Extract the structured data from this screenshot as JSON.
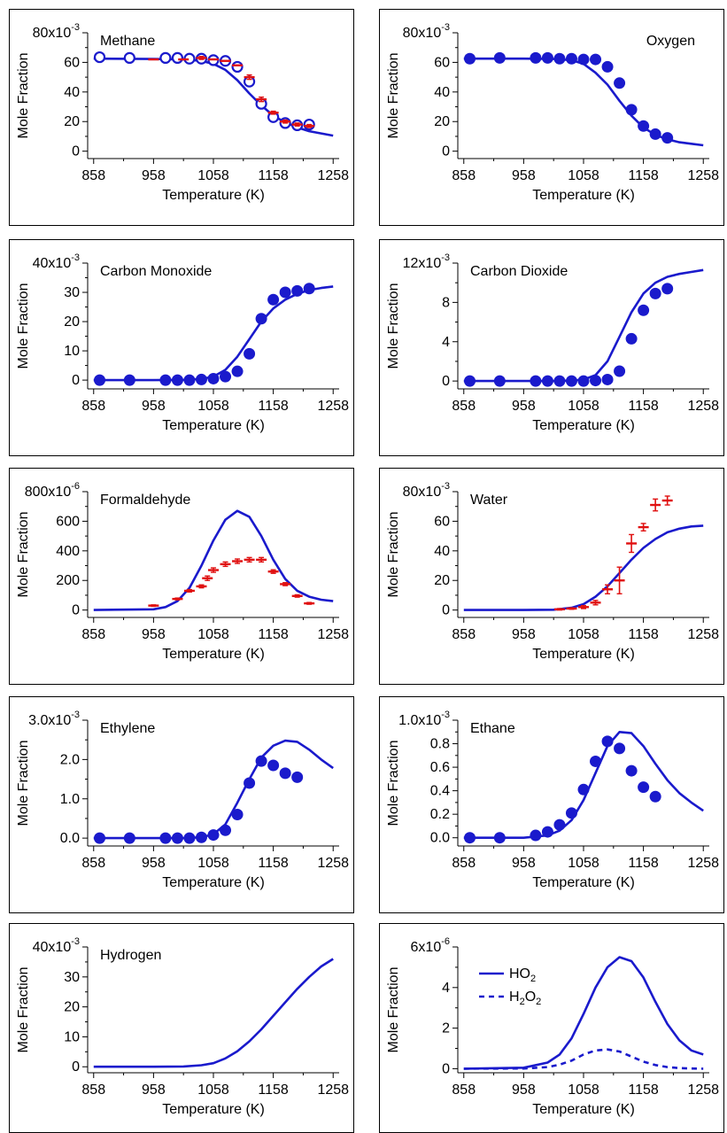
{
  "colors": {
    "model": "#1a1acc",
    "exp_open": "#1a1acc",
    "exp_red": "#e01010",
    "axis": "#000000"
  },
  "chart_data": [
    {
      "type": "line",
      "title": "Methane",
      "xlabel": "Temperature (K)",
      "ylabel": "Mole Fraction",
      "exponent": "80x10",
      "exponent_power": "-3",
      "xlim": [
        848,
        1268
      ],
      "ylim": [
        -5,
        80
      ],
      "xticks": [
        858,
        958,
        1058,
        1158,
        1258
      ],
      "yticks": [
        0,
        20,
        40,
        60,
        80
      ],
      "ytick_labels": [
        "0",
        "20",
        "40",
        "60",
        ""
      ],
      "series": [
        {
          "kind": "model",
          "style": "solid",
          "x": [
            858,
            958,
            1008,
            1038,
            1058,
            1078,
            1098,
            1118,
            1138,
            1158,
            1178,
            1198,
            1218,
            1238,
            1258
          ],
          "y": [
            62.5,
            62.3,
            62,
            61,
            59,
            55,
            48,
            39,
            31,
            24,
            19.5,
            16,
            13.5,
            12,
            10.5
          ]
        },
        {
          "kind": "scatter",
          "marker": "open-circle",
          "x": [
            868,
            918,
            978,
            998,
            1018,
            1038,
            1058,
            1078,
            1098,
            1118,
            1138,
            1158,
            1178,
            1198,
            1218
          ],
          "y": [
            63.5,
            63,
            63,
            63,
            62.5,
            62.5,
            61.5,
            61,
            57,
            47,
            32,
            23,
            19,
            17.5,
            18
          ]
        },
        {
          "kind": "errorbar",
          "marker": "plus",
          "x": [
            958,
            1008,
            1038,
            1058,
            1078,
            1098,
            1118,
            1138,
            1158,
            1178,
            1198,
            1218
          ],
          "y": [
            62,
            62,
            63,
            62,
            61,
            58,
            50,
            35,
            26,
            20,
            18,
            17
          ],
          "err": [
            0,
            0,
            1,
            0,
            0,
            0,
            1.5,
            1.5,
            1,
            1,
            1,
            1
          ]
        }
      ]
    },
    {
      "type": "line",
      "title": "Oxygen",
      "xlabel": "Temperature (K)",
      "ylabel": "Mole Fraction",
      "exponent": "80x10",
      "exponent_power": "-3",
      "xlim": [
        848,
        1268
      ],
      "ylim": [
        -5,
        80
      ],
      "xticks": [
        858,
        958,
        1058,
        1158,
        1258
      ],
      "yticks": [
        0,
        20,
        40,
        60,
        80
      ],
      "ytick_labels": [
        "0",
        "20",
        "40",
        "60",
        ""
      ],
      "series": [
        {
          "kind": "model",
          "style": "solid",
          "x": [
            858,
            958,
            1008,
            1038,
            1058,
            1078,
            1098,
            1118,
            1138,
            1158,
            1178,
            1198,
            1218,
            1238,
            1258
          ],
          "y": [
            62.5,
            62.5,
            62.3,
            61.5,
            59,
            53,
            45,
            34,
            24,
            16,
            11,
            8,
            6,
            5,
            4
          ]
        },
        {
          "kind": "scatter",
          "marker": "filled-circle",
          "x": [
            868,
            918,
            978,
            998,
            1018,
            1038,
            1058,
            1078,
            1098,
            1118,
            1138,
            1158,
            1178,
            1198,
            1218
          ],
          "y": [
            62.5,
            63,
            63,
            63,
            62.5,
            62.5,
            62,
            62,
            57,
            46,
            28,
            17,
            11.5,
            9,
            null
          ]
        }
      ]
    },
    {
      "type": "line",
      "title": "Carbon Monoxide",
      "xlabel": "Temperature (K)",
      "ylabel": "Mole Fraction",
      "exponent": "40x10",
      "exponent_power": "-3",
      "xlim": [
        848,
        1268
      ],
      "ylim": [
        -3,
        40
      ],
      "xticks": [
        858,
        958,
        1058,
        1158,
        1258
      ],
      "yticks": [
        0,
        10,
        20,
        30,
        40
      ],
      "ytick_labels": [
        "0",
        "10",
        "20",
        "30",
        ""
      ],
      "series": [
        {
          "kind": "model",
          "style": "solid",
          "x": [
            858,
            958,
            1008,
            1038,
            1058,
            1078,
            1098,
            1118,
            1138,
            1158,
            1178,
            1198,
            1218,
            1238,
            1258
          ],
          "y": [
            0,
            0,
            0.1,
            0.4,
            1.2,
            3.5,
            8,
            14,
            20,
            24.5,
            27.5,
            29.5,
            30.8,
            31.5,
            32
          ]
        },
        {
          "kind": "scatter",
          "marker": "filled-circle",
          "x": [
            868,
            918,
            978,
            998,
            1018,
            1038,
            1058,
            1078,
            1098,
            1118,
            1138,
            1158,
            1178,
            1198,
            1218
          ],
          "y": [
            0,
            0,
            0,
            0,
            0,
            0.2,
            0.5,
            1.2,
            3,
            9,
            21,
            27.5,
            30,
            30.5,
            31.3
          ]
        }
      ]
    },
    {
      "type": "line",
      "title": "Carbon Dioxide",
      "xlabel": "Temperature (K)",
      "ylabel": "Mole Fraction",
      "exponent": "12x10",
      "exponent_power": "-3",
      "xlim": [
        848,
        1268
      ],
      "ylim": [
        -0.8,
        12
      ],
      "xticks": [
        858,
        958,
        1058,
        1158,
        1258
      ],
      "yticks": [
        0,
        4,
        8,
        12
      ],
      "ytick_labels": [
        "0",
        "4",
        "8",
        ""
      ],
      "series": [
        {
          "kind": "model",
          "style": "solid",
          "x": [
            858,
            958,
            1008,
            1038,
            1058,
            1078,
            1098,
            1118,
            1138,
            1158,
            1178,
            1198,
            1218,
            1238,
            1258
          ],
          "y": [
            0,
            0,
            0,
            0.05,
            0.15,
            0.6,
            2.0,
            4.5,
            7.0,
            8.9,
            10.0,
            10.6,
            10.9,
            11.1,
            11.3
          ]
        },
        {
          "kind": "scatter",
          "marker": "filled-circle",
          "x": [
            868,
            918,
            978,
            998,
            1018,
            1038,
            1058,
            1078,
            1098,
            1118,
            1138,
            1158,
            1178,
            1198,
            1218
          ],
          "y": [
            0,
            0,
            0,
            0,
            0,
            0,
            0,
            0.05,
            0.15,
            1.0,
            4.3,
            7.2,
            8.9,
            9.4,
            null
          ]
        }
      ]
    },
    {
      "type": "line",
      "title": "Formaldehyde",
      "xlabel": "Temperature (K)",
      "ylabel": "Mole Fraction",
      "exponent": "800x10",
      "exponent_power": "-6",
      "xlim": [
        848,
        1268
      ],
      "ylim": [
        -50,
        800
      ],
      "xticks": [
        858,
        958,
        1058,
        1158,
        1258
      ],
      "yticks": [
        0,
        200,
        400,
        600,
        800
      ],
      "ytick_labels": [
        "0",
        "200",
        "400",
        "600",
        ""
      ],
      "series": [
        {
          "kind": "model",
          "style": "solid",
          "x": [
            858,
            958,
            978,
            998,
            1018,
            1038,
            1058,
            1078,
            1098,
            1118,
            1138,
            1158,
            1178,
            1198,
            1218,
            1238,
            1258
          ],
          "y": [
            0,
            5,
            20,
            60,
            150,
            300,
            470,
            610,
            670,
            630,
            500,
            340,
            210,
            130,
            90,
            70,
            60
          ]
        },
        {
          "kind": "errorbar",
          "marker": "plus",
          "x": [
            958,
            998,
            1018,
            1038,
            1048,
            1058,
            1078,
            1098,
            1118,
            1138,
            1158,
            1178,
            1198,
            1218
          ],
          "y": [
            30,
            75,
            130,
            160,
            215,
            270,
            310,
            330,
            340,
            340,
            260,
            175,
            95,
            45
          ],
          "err": [
            5,
            6,
            8,
            10,
            15,
            15,
            15,
            15,
            15,
            15,
            12,
            10,
            8,
            6
          ]
        }
      ]
    },
    {
      "type": "line",
      "title": "Water",
      "xlabel": "Temperature (K)",
      "ylabel": "Mole Fraction",
      "exponent": "80x10",
      "exponent_power": "-3",
      "xlim": [
        848,
        1268
      ],
      "ylim": [
        -5,
        80
      ],
      "xticks": [
        858,
        958,
        1058,
        1158,
        1258
      ],
      "yticks": [
        0,
        20,
        40,
        60,
        80
      ],
      "ytick_labels": [
        "0",
        "20",
        "40",
        "60",
        ""
      ],
      "series": [
        {
          "kind": "model",
          "style": "solid",
          "x": [
            858,
            958,
            1008,
            1038,
            1058,
            1078,
            1098,
            1118,
            1138,
            1158,
            1178,
            1198,
            1218,
            1238,
            1258
          ],
          "y": [
            0,
            0,
            0.2,
            1.5,
            4,
            9,
            16,
            25,
            34,
            42,
            48,
            52.5,
            55,
            56.5,
            57
          ]
        },
        {
          "kind": "errorbar",
          "marker": "plus",
          "x": [
            1018,
            1038,
            1058,
            1078,
            1098,
            1118,
            1138,
            1158,
            1178,
            1198,
            1218
          ],
          "y": [
            0.5,
            1,
            2,
            5,
            14,
            20,
            45,
            56,
            71,
            74,
            null
          ],
          "err": [
            0.5,
            0.5,
            1,
            1.5,
            3,
            9,
            6,
            2.5,
            4,
            3,
            0
          ]
        }
      ]
    },
    {
      "type": "line",
      "title": "Ethylene",
      "xlabel": "Temperature (K)",
      "ylabel": "Mole Fraction",
      "exponent": "3.0x10",
      "exponent_power": "-3",
      "xlim": [
        848,
        1268
      ],
      "ylim": [
        -0.2,
        3.0
      ],
      "xticks": [
        858,
        958,
        1058,
        1158,
        1258
      ],
      "yticks": [
        0,
        1.0,
        2.0,
        3.0
      ],
      "ytick_labels": [
        "0.0",
        "1.0",
        "2.0",
        ""
      ],
      "series": [
        {
          "kind": "model",
          "style": "solid",
          "x": [
            858,
            958,
            1008,
            1038,
            1058,
            1078,
            1098,
            1118,
            1138,
            1158,
            1178,
            1198,
            1218,
            1238,
            1258
          ],
          "y": [
            0,
            0,
            0,
            0.02,
            0.1,
            0.35,
            0.9,
            1.5,
            2.05,
            2.35,
            2.48,
            2.45,
            2.25,
            2.0,
            1.78
          ]
        },
        {
          "kind": "scatter",
          "marker": "filled-circle",
          "x": [
            868,
            918,
            978,
            998,
            1018,
            1038,
            1058,
            1078,
            1098,
            1118,
            1138,
            1158,
            1178,
            1198,
            1218
          ],
          "y": [
            0,
            0,
            0,
            0,
            0,
            0.02,
            0.08,
            0.2,
            0.6,
            1.4,
            1.96,
            1.85,
            1.65,
            1.55,
            null
          ]
        }
      ]
    },
    {
      "type": "line",
      "title": "Ethane",
      "xlabel": "Temperature (K)",
      "ylabel": "Mole Fraction",
      "exponent": "1.0x10",
      "exponent_power": "-3",
      "xlim": [
        848,
        1268
      ],
      "ylim": [
        -0.07,
        1.0
      ],
      "xticks": [
        858,
        958,
        1058,
        1158,
        1258
      ],
      "yticks": [
        0,
        0.2,
        0.4,
        0.6,
        0.8,
        1.0
      ],
      "ytick_labels": [
        "0.0",
        "0.2",
        "0.4",
        "0.6",
        "0.8",
        ""
      ],
      "series": [
        {
          "kind": "model",
          "style": "solid",
          "x": [
            858,
            958,
            998,
            1018,
            1038,
            1058,
            1078,
            1098,
            1118,
            1138,
            1158,
            1178,
            1198,
            1218,
            1238,
            1258
          ],
          "y": [
            0,
            0,
            0.02,
            0.06,
            0.15,
            0.32,
            0.55,
            0.78,
            0.9,
            0.89,
            0.78,
            0.63,
            0.49,
            0.38,
            0.3,
            0.23
          ]
        },
        {
          "kind": "scatter",
          "marker": "filled-circle",
          "x": [
            868,
            918,
            978,
            998,
            1018,
            1038,
            1058,
            1078,
            1098,
            1118,
            1138,
            1158,
            1178,
            1198,
            1218
          ],
          "y": [
            0,
            0,
            0.02,
            0.05,
            0.11,
            0.21,
            0.41,
            0.65,
            0.82,
            0.76,
            0.57,
            0.43,
            0.35,
            null,
            null
          ]
        }
      ]
    },
    {
      "type": "line",
      "title": "Hydrogen",
      "xlabel": "Temperature (K)",
      "ylabel": "Mole Fraction",
      "exponent": "40x10",
      "exponent_power": "-3",
      "xlim": [
        848,
        1268
      ],
      "ylim": [
        -2,
        40
      ],
      "xticks": [
        858,
        958,
        1058,
        1158,
        1258
      ],
      "yticks": [
        0,
        10,
        20,
        30,
        40
      ],
      "ytick_labels": [
        "0",
        "10",
        "20",
        "30",
        ""
      ],
      "series": [
        {
          "kind": "model",
          "style": "solid",
          "x": [
            858,
            958,
            1008,
            1038,
            1058,
            1078,
            1098,
            1118,
            1138,
            1158,
            1178,
            1198,
            1218,
            1238,
            1258
          ],
          "y": [
            0,
            0,
            0.1,
            0.5,
            1.2,
            2.8,
            5.2,
            8.5,
            12.5,
            17,
            21.5,
            26,
            30,
            33.5,
            36
          ]
        }
      ]
    },
    {
      "type": "line",
      "title": "",
      "xlabel": "Temperature (K)",
      "ylabel": "Mole Fraction",
      "exponent": "6x10",
      "exponent_power": "-6",
      "xlim": [
        848,
        1268
      ],
      "ylim": [
        -0.2,
        6
      ],
      "xticks": [
        858,
        958,
        1058,
        1158,
        1258
      ],
      "yticks": [
        0,
        2,
        4,
        6
      ],
      "ytick_labels": [
        "0",
        "2",
        "4",
        ""
      ],
      "legend": [
        {
          "label": "HO",
          "sub": "2",
          "label2": "",
          "sub2": "",
          "style": "solid"
        },
        {
          "label": "H",
          "sub": "2",
          "label2": "O",
          "sub2": "2",
          "style": "dashed"
        }
      ],
      "series": [
        {
          "kind": "model",
          "style": "solid",
          "x": [
            858,
            958,
            998,
            1018,
            1038,
            1058,
            1078,
            1098,
            1118,
            1138,
            1158,
            1178,
            1198,
            1218,
            1238,
            1258
          ],
          "y": [
            0,
            0.05,
            0.3,
            0.7,
            1.5,
            2.7,
            4.0,
            5.0,
            5.5,
            5.3,
            4.5,
            3.3,
            2.2,
            1.4,
            0.9,
            0.7
          ]
        },
        {
          "kind": "model",
          "style": "dashed",
          "x": [
            858,
            958,
            998,
            1018,
            1038,
            1058,
            1078,
            1098,
            1118,
            1138,
            1158,
            1178,
            1198,
            1218,
            1238,
            1258
          ],
          "y": [
            0,
            0.01,
            0.08,
            0.2,
            0.4,
            0.7,
            0.9,
            0.95,
            0.85,
            0.6,
            0.35,
            0.18,
            0.08,
            0.03,
            0.01,
            0
          ]
        }
      ]
    }
  ]
}
